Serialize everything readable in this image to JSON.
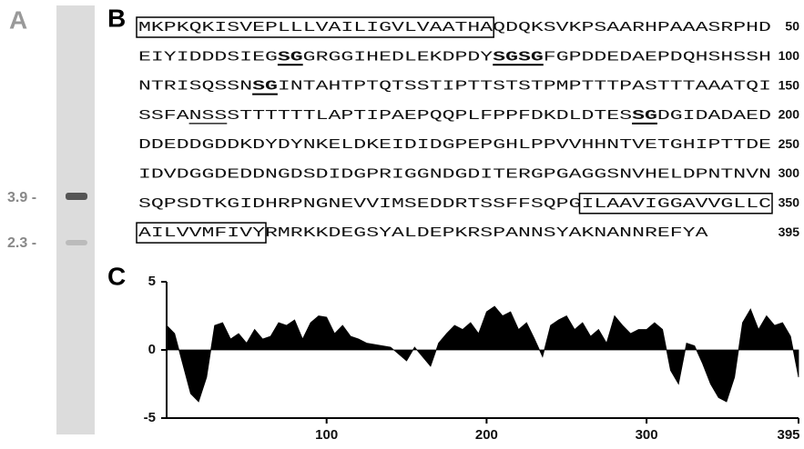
{
  "panel_a": {
    "label": "A",
    "markers": [
      "3.9 -",
      "2.3 -"
    ]
  },
  "panel_b": {
    "label": "B",
    "lines": [
      {
        "segments": [
          {
            "text": "MKPKQKISVEPLLLVAILIGVLVAATHA",
            "style": "box"
          },
          {
            "text": "QDQKSVKPSAARHPAAASRPHD"
          }
        ],
        "end": 50
      },
      {
        "segments": [
          {
            "text": "EIYIDDDSIEG"
          },
          {
            "text": "SG",
            "style": "bold-underline"
          },
          {
            "text": "GRGGIHEDLEKDPDY"
          },
          {
            "text": "SGSG",
            "style": "bold-underline"
          },
          {
            "text": "FGPDDEDAEPDQHSHSSH"
          }
        ],
        "end": 100
      },
      {
        "segments": [
          {
            "text": "NTRISQSSN"
          },
          {
            "text": "SG",
            "style": "bold-underline"
          },
          {
            "text": "INTAHTPTQTSSTIPTTSTSTPMPTTTPASTTTAAATQI"
          }
        ],
        "end": 150
      },
      {
        "segments": [
          {
            "text": "SSFA"
          },
          {
            "text": "NSS",
            "style": "underline"
          },
          {
            "text": "STTTTTTLAPTIPAEPQQPLFPPFDKDLDTES"
          },
          {
            "text": "SG",
            "style": "bold-underline"
          },
          {
            "text": "DGIDADAED"
          }
        ],
        "end": 200
      },
      {
        "segments": [
          {
            "text": "DDEDDGDDKDYDYNKELDKEIDIDGPEPGHLPPVVHHNTVETGHIPTTDE"
          }
        ],
        "end": 250
      },
      {
        "segments": [
          {
            "text": "IDVDGGDEDDNGDSDIDGPRIGGNDGDITERGPGAGGSNVHELDPNTNVN"
          }
        ],
        "end": 300
      },
      {
        "segments": [
          {
            "text": "SQPSDTKGIDHRPNGNEVVIMSEDDRTSSFFSQPG"
          },
          {
            "text": "ILAAVIGGAVVGLLC",
            "style": "box"
          }
        ],
        "end": 350
      },
      {
        "segments": [
          {
            "text": "AILVVMFIVY",
            "style": "box"
          },
          {
            "text": "RMRKKDEGSYALDEPKRSPANNSYAKNANNREFYA"
          }
        ],
        "end": 395
      }
    ]
  },
  "chart_data": {
    "type": "area",
    "panel_label": "C",
    "color": "#000000",
    "x": [
      0,
      5,
      10,
      15,
      20,
      25,
      30,
      35,
      40,
      45,
      50,
      55,
      60,
      65,
      70,
      75,
      80,
      85,
      90,
      95,
      100,
      105,
      110,
      115,
      120,
      125,
      130,
      135,
      140,
      145,
      150,
      155,
      160,
      165,
      170,
      175,
      180,
      185,
      190,
      195,
      200,
      205,
      210,
      215,
      220,
      225,
      230,
      235,
      240,
      245,
      250,
      255,
      260,
      265,
      270,
      275,
      280,
      285,
      290,
      295,
      300,
      305,
      310,
      315,
      320,
      325,
      330,
      335,
      340,
      345,
      350,
      355,
      360,
      365,
      370,
      375,
      380,
      385,
      390,
      395
    ],
    "values": [
      1.8,
      1.2,
      -1,
      -3.2,
      -3.8,
      -2,
      1.8,
      2,
      0.8,
      1.2,
      0.5,
      1.5,
      0.8,
      1,
      2,
      1.8,
      2.2,
      0.8,
      2,
      2.5,
      2.4,
      1.2,
      1.8,
      1,
      0.8,
      0.5,
      0.4,
      0.3,
      0.2,
      -0.3,
      -0.8,
      0.2,
      -0.5,
      -1.2,
      0.5,
      1.2,
      1.8,
      1.5,
      2,
      1.2,
      2.8,
      3.2,
      2.5,
      2.8,
      1.5,
      2,
      0.8,
      -0.5,
      1.8,
      2.2,
      2.5,
      1.5,
      2,
      1,
      1.5,
      0.5,
      2.5,
      1.8,
      1.2,
      1.5,
      1.5,
      2,
      1.5,
      -1.5,
      -2.5,
      0.5,
      0.3,
      -1,
      -2.5,
      -3.5,
      -3.8,
      -2,
      2,
      3,
      1.5,
      2.5,
      1.8,
      2,
      1,
      -2
    ],
    "xlim": [
      0,
      395
    ],
    "xticks": [
      100,
      200,
      300,
      395
    ],
    "ylim": [
      -5,
      5
    ],
    "yticks": [
      5,
      0,
      -5
    ]
  }
}
